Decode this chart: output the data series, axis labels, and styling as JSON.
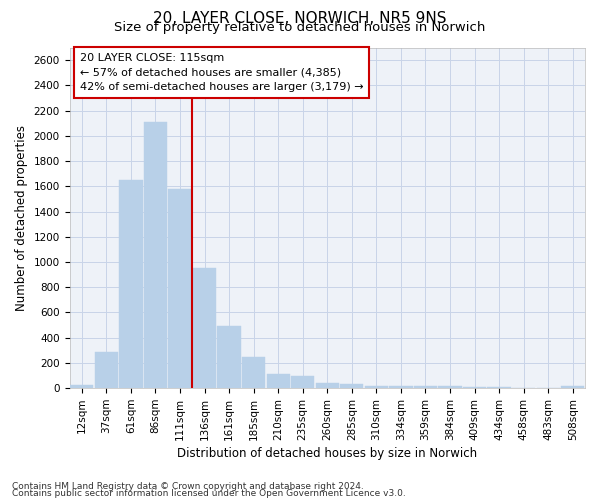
{
  "title": "20, LAYER CLOSE, NORWICH, NR5 9NS",
  "subtitle": "Size of property relative to detached houses in Norwich",
  "xlabel": "Distribution of detached houses by size in Norwich",
  "ylabel": "Number of detached properties",
  "footnote1": "Contains HM Land Registry data © Crown copyright and database right 2024.",
  "footnote2": "Contains public sector information licensed under the Open Government Licence v3.0.",
  "annotation_title": "20 LAYER CLOSE: 115sqm",
  "annotation_line1": "← 57% of detached houses are smaller (4,385)",
  "annotation_line2": "42% of semi-detached houses are larger (3,179) →",
  "categories": [
    "12sqm",
    "37sqm",
    "61sqm",
    "86sqm",
    "111sqm",
    "136sqm",
    "161sqm",
    "185sqm",
    "210sqm",
    "235sqm",
    "260sqm",
    "285sqm",
    "310sqm",
    "334sqm",
    "359sqm",
    "384sqm",
    "409sqm",
    "434sqm",
    "458sqm",
    "483sqm",
    "508sqm"
  ],
  "values": [
    22,
    290,
    1650,
    2110,
    1575,
    950,
    495,
    245,
    110,
    100,
    40,
    35,
    20,
    20,
    20,
    15,
    10,
    10,
    5,
    0,
    20
  ],
  "bar_color": "#b8d0e8",
  "bar_edge_color": "#b8d0e8",
  "vline_color": "#cc0000",
  "vline_x_index": 4,
  "ylim": [
    0,
    2700
  ],
  "yticks": [
    0,
    200,
    400,
    600,
    800,
    1000,
    1200,
    1400,
    1600,
    1800,
    2000,
    2200,
    2400,
    2600
  ],
  "grid_color": "#c8d4e8",
  "bg_color": "#eef2f8",
  "annotation_box_color": "#ffffff",
  "annotation_box_edge": "#cc0000",
  "title_fontsize": 11,
  "subtitle_fontsize": 9.5,
  "axis_label_fontsize": 8.5,
  "tick_fontsize": 7.5,
  "annotation_fontsize": 8,
  "footnote_fontsize": 6.5
}
